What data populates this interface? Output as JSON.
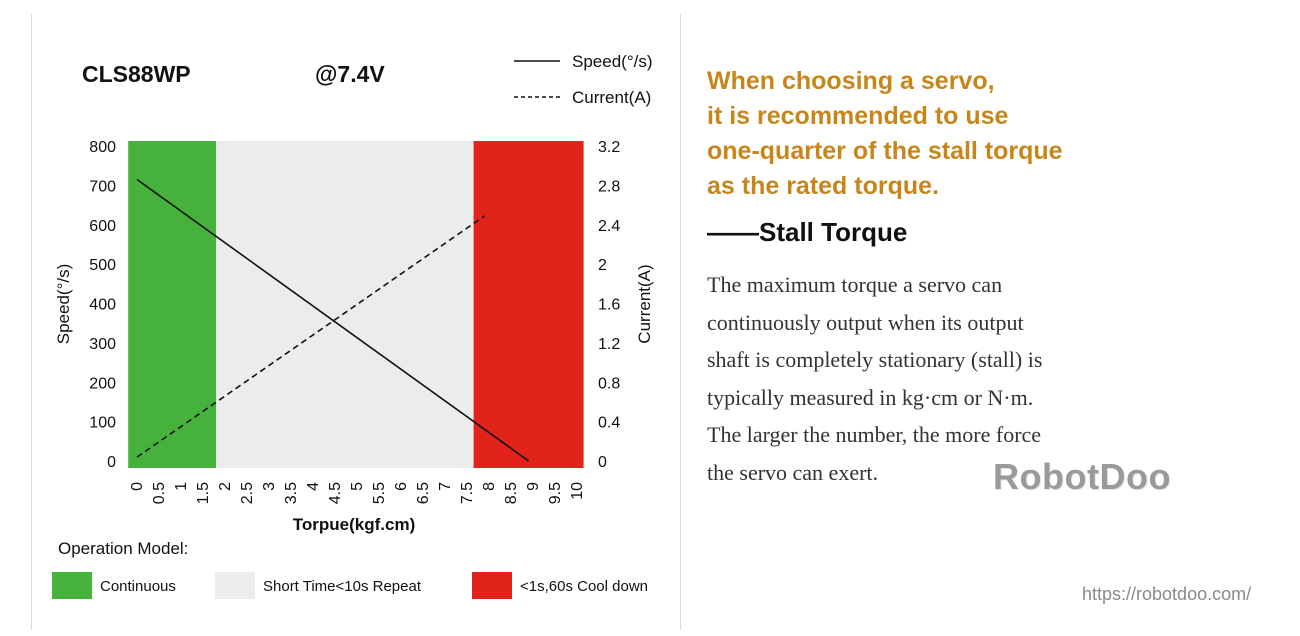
{
  "chart_data": {
    "type": "line",
    "model": "CLS88WP",
    "voltage": "@7.4V",
    "xlabel": "Torpue(kgf.cm)",
    "ylabel_left": "Speed(°/s)",
    "ylabel_right": "Current(A)",
    "x_ticks": [
      "0",
      "0.5",
      "1",
      "1.5",
      "2",
      "2.5",
      "3",
      "3.5",
      "4",
      "4.5",
      "5",
      "5.5",
      "6",
      "6.5",
      "7",
      "7.5",
      "8",
      "8.5",
      "9",
      "9.5",
      "10"
    ],
    "y_left_ticks": [
      "0",
      "100",
      "200",
      "300",
      "400",
      "500",
      "600",
      "700",
      "800"
    ],
    "y_right_ticks": [
      "0",
      "0.4",
      "0.8",
      "1.2",
      "1.6",
      "2",
      "2.4",
      "2.8",
      "3.2"
    ],
    "xlim": [
      0,
      10
    ],
    "ylim_left": [
      0,
      800
    ],
    "ylim_right": [
      0,
      3.2
    ],
    "series": [
      {
        "name": "Speed(°/s)",
        "axis": "left",
        "style": "solid",
        "color": "#111111",
        "points": [
          [
            0,
            715
          ],
          [
            8.9,
            0
          ]
        ]
      },
      {
        "name": "Current(A)",
        "axis": "right",
        "style": "dashed",
        "color": "#111111",
        "points": [
          [
            0,
            0.04
          ],
          [
            7.9,
            2.49
          ]
        ]
      }
    ],
    "legend": [
      {
        "label": "Speed(°/s)",
        "style": "solid"
      },
      {
        "label": "Current(A)",
        "style": "dashed"
      }
    ],
    "legend_position": "top-right",
    "bands": [
      {
        "from": -0.2,
        "to": 1.8,
        "color": "#46b23c",
        "mode": "Continuous"
      },
      {
        "from": 1.8,
        "to": 7.65,
        "color": "#ececec",
        "mode": "Short Time<10s Repeat"
      },
      {
        "from": 7.65,
        "to": 10.15,
        "color": "#e2231a",
        "mode": "<1s,60s Cool down"
      }
    ],
    "operation_title": "Operation Model:",
    "operation_modes": [
      {
        "label": "Continuous",
        "color": "#46b23c"
      },
      {
        "label": "Short Time<10s Repeat",
        "color": "#ececec"
      },
      {
        "label": "<1s,60s Cool down",
        "color": "#e2231a"
      }
    ],
    "grid": false
  },
  "info": {
    "tip_lines": [
      "When choosing a servo,",
      "it is recommended to use",
      "one-quarter of the stall torque",
      "as the rated torque."
    ],
    "heading": "——Stall Torque",
    "body_lines": [
      "The maximum torque a servo can",
      "continuously output when its output",
      "shaft is completely stationary (stall) is",
      "typically measured in kg·cm or N·m.",
      "The larger the number, the more force",
      "the servo can exert."
    ]
  },
  "watermark": {
    "brand": "RobotDoo",
    "url": "https://robotdoo.com/"
  },
  "colors": {
    "tip": "#c8861a",
    "continuous": "#46b23c",
    "short_time": "#ececec",
    "cool_down": "#e2231a"
  }
}
